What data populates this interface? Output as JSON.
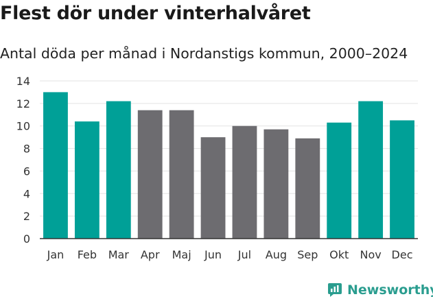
{
  "header": {
    "title": "Flest dör under vinterhalvåret",
    "subtitle": "Antal döda per månad i Nordanstigs kommun, 2000–2024"
  },
  "brand": {
    "name": "Newsworthy",
    "icon": "newsworthy-logo-icon"
  },
  "colors": {
    "winter": "#00a097",
    "summer": "#6d6c70",
    "grid": "#e3e3e3",
    "axis": "#333333"
  },
  "chart_data": {
    "type": "bar",
    "title": "Flest dör under vinterhalvåret",
    "subtitle": "Antal döda per månad i Nordanstigs kommun, 2000–2024",
    "xlabel": "",
    "ylabel": "",
    "ylim": [
      0,
      14
    ],
    "yticks": [
      0,
      2,
      4,
      6,
      8,
      10,
      12,
      14
    ],
    "grid": true,
    "categories": [
      "Jan",
      "Feb",
      "Mar",
      "Apr",
      "Maj",
      "Jun",
      "Jul",
      "Aug",
      "Sep",
      "Okt",
      "Nov",
      "Dec"
    ],
    "values": [
      13.0,
      10.4,
      12.2,
      11.4,
      11.4,
      9.0,
      10.0,
      9.7,
      8.9,
      10.3,
      12.2,
      10.5
    ],
    "highlight": [
      true,
      true,
      true,
      false,
      false,
      false,
      false,
      false,
      false,
      true,
      true,
      true
    ]
  }
}
